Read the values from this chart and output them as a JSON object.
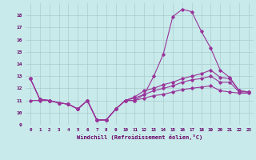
{
  "xlabel": "Windchill (Refroidissement éolien,°C)",
  "ylabel": "",
  "background_color": "#c8eaea",
  "line_color": "#993399",
  "grid_color": "#aacccc",
  "xlim": [
    -0.5,
    23.5
  ],
  "ylim": [
    9,
    19
  ],
  "yticks": [
    9,
    10,
    11,
    12,
    13,
    14,
    15,
    16,
    17,
    18
  ],
  "xticks": [
    0,
    1,
    2,
    3,
    4,
    5,
    6,
    7,
    8,
    9,
    10,
    11,
    12,
    13,
    14,
    15,
    16,
    17,
    18,
    19,
    20,
    21,
    22,
    23
  ],
  "lines": [
    {
      "x": [
        0,
        1,
        2,
        3,
        4,
        5,
        6,
        7,
        8,
        9,
        10,
        11,
        12,
        13,
        14,
        15,
        16,
        17,
        18,
        19,
        20,
        21,
        22,
        23
      ],
      "y": [
        12.8,
        11.1,
        11.0,
        10.8,
        10.7,
        10.3,
        11.0,
        9.4,
        9.4,
        10.3,
        11.0,
        11.0,
        11.5,
        13.0,
        14.8,
        17.9,
        18.5,
        18.3,
        16.7,
        15.3,
        13.5,
        12.9,
        11.8,
        11.7
      ]
    },
    {
      "x": [
        0,
        1,
        2,
        3,
        4,
        5,
        6,
        7,
        8,
        9,
        10,
        11,
        12,
        13,
        14,
        15,
        16,
        17,
        18,
        19,
        20,
        21,
        22,
        23
      ],
      "y": [
        12.8,
        11.1,
        11.0,
        10.8,
        10.7,
        10.3,
        11.0,
        9.4,
        9.4,
        10.3,
        11.0,
        11.3,
        11.8,
        12.0,
        12.3,
        12.5,
        12.8,
        13.0,
        13.2,
        13.5,
        12.9,
        12.8,
        11.8,
        11.7
      ]
    },
    {
      "x": [
        0,
        1,
        2,
        3,
        4,
        5,
        6,
        7,
        8,
        9,
        10,
        11,
        12,
        13,
        14,
        15,
        16,
        17,
        18,
        19,
        20,
        21,
        22,
        23
      ],
      "y": [
        12.8,
        11.1,
        11.0,
        10.8,
        10.7,
        10.3,
        11.0,
        9.4,
        9.4,
        10.3,
        11.0,
        11.2,
        11.5,
        11.8,
        12.0,
        12.2,
        12.5,
        12.7,
        12.8,
        13.0,
        12.5,
        12.5,
        11.7,
        11.7
      ]
    },
    {
      "x": [
        0,
        1,
        2,
        3,
        4,
        5,
        6,
        7,
        8,
        9,
        10,
        11,
        12,
        13,
        14,
        15,
        16,
        17,
        18,
        19,
        20,
        21,
        22,
        23
      ],
      "y": [
        11.0,
        11.0,
        11.0,
        10.8,
        10.7,
        10.3,
        11.0,
        9.4,
        9.4,
        10.3,
        11.0,
        11.0,
        11.2,
        11.4,
        11.5,
        11.7,
        11.9,
        12.0,
        12.1,
        12.2,
        11.8,
        11.7,
        11.6,
        11.6
      ]
    }
  ]
}
